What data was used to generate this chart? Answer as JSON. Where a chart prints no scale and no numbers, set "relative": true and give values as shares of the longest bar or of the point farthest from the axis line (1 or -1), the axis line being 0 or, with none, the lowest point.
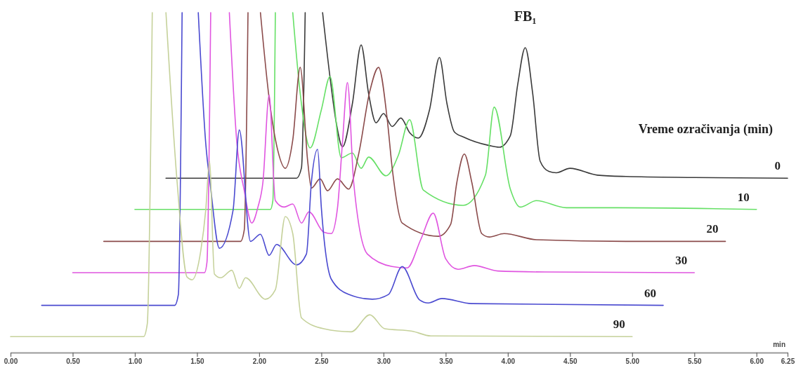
{
  "chart_data": {
    "type": "line",
    "relative": true,
    "xlabel": "min",
    "legend_title": "Vreme ozračivanja (min)",
    "xlim": [
      0,
      6.25
    ],
    "xticks": [
      {
        "value": 0,
        "label": "0.00"
      },
      {
        "value": 0.5,
        "label": "0.50"
      },
      {
        "value": 1,
        "label": "1.00"
      },
      {
        "value": 1.5,
        "label": "1.50"
      },
      {
        "value": 2,
        "label": "2.00"
      },
      {
        "value": 2.5,
        "label": "2.50"
      },
      {
        "value": 3,
        "label": "3.00"
      },
      {
        "value": 3.5,
        "label": "3.50"
      },
      {
        "value": 4,
        "label": "4.00"
      },
      {
        "value": 4.5,
        "label": "4.50"
      },
      {
        "value": 5,
        "label": "5.00"
      },
      {
        "value": 5.5,
        "label": "5.50"
      },
      {
        "value": 6,
        "label": "6.00"
      },
      {
        "value": 6.25,
        "label": "6.25"
      }
    ],
    "annotations": [
      {
        "text": "FB₁",
        "x": 4.14,
        "y": 0.897
      }
    ],
    "series": [
      {
        "name": "0",
        "color": "#3a3a3a",
        "x": [
          1.25,
          2.3,
          2.34,
          2.37,
          2.44,
          2.51,
          2.57,
          2.62,
          2.67,
          2.75,
          2.82,
          2.88,
          2.94,
          3.0,
          3.07,
          3.14,
          3.21,
          3.28,
          3.37,
          3.45,
          3.51,
          3.57,
          3.65,
          3.85,
          3.93,
          4.02,
          4.08,
          4.14,
          4.2,
          4.26,
          4.33,
          4.39,
          4.5,
          4.72,
          4.95,
          5.5,
          6.25
        ],
        "values": [
          0.513,
          0.513,
          0.543,
          1,
          null,
          1,
          0.809,
          0.676,
          0.605,
          0.733,
          0.905,
          0.762,
          0.676,
          0.703,
          0.665,
          0.69,
          0.647,
          0.631,
          0.714,
          0.868,
          0.733,
          0.649,
          0.633,
          0.609,
          0.604,
          0.638,
          0.79,
          0.897,
          0.762,
          0.563,
          0.533,
          0.529,
          0.542,
          0.522,
          0.518,
          0.515,
          0.513
        ]
      },
      {
        "name": "10",
        "color": "#66e066",
        "x": [
          1.0,
          2.09,
          2.11,
          2.13,
          2.2,
          2.27,
          2.33,
          2.41,
          2.5,
          2.57,
          2.66,
          2.75,
          2.82,
          2.88,
          3.02,
          3.12,
          3.21,
          3.32,
          3.64,
          3.82,
          3.89,
          4.02,
          4.1,
          4.23,
          4.47,
          4.88,
          6.0
        ],
        "values": [
          0.421,
          0.421,
          0.447,
          1,
          null,
          1,
          0.762,
          0.602,
          0.714,
          0.812,
          0.573,
          0.587,
          0.542,
          0.575,
          0.52,
          0.581,
          0.685,
          0.478,
          0.433,
          0.522,
          0.722,
          0.481,
          0.428,
          0.447,
          0.426,
          0.426,
          0.421
        ]
      },
      {
        "name": "20",
        "color": "#8b4b4b",
        "x": [
          0.75,
          1.85,
          1.88,
          1.91,
          1.96,
          2.01,
          2.08,
          2.15,
          2.21,
          2.27,
          2.33,
          2.39,
          2.42,
          2.49,
          2.55,
          2.63,
          2.72,
          2.8,
          2.89,
          2.96,
          3.03,
          3.07,
          3.15,
          3.44,
          3.54,
          3.59,
          3.65,
          3.71,
          3.79,
          3.85,
          3.97,
          4.23,
          4.95,
          5.75
        ],
        "values": [
          0.327,
          0.327,
          0.361,
          1,
          null,
          1,
          0.748,
          0.594,
          0.542,
          0.625,
          0.839,
          0.563,
          0.484,
          0.511,
          0.476,
          0.511,
          0.481,
          0.584,
          0.769,
          0.839,
          0.686,
          0.542,
          0.381,
          0.342,
          0.377,
          0.501,
          0.584,
          0.501,
          0.35,
          0.34,
          0.35,
          0.332,
          0.327,
          0.327
        ]
      },
      {
        "name": "30",
        "color": "#e055e0",
        "x": [
          0.5,
          1.56,
          1.58,
          1.61,
          1.68,
          1.76,
          1.82,
          1.88,
          1.94,
          1.99,
          2.03,
          2.08,
          2.13,
          2.2,
          2.27,
          2.34,
          2.4,
          2.52,
          2.58,
          2.63,
          2.67,
          2.71,
          2.76,
          2.87,
          3.07,
          3.19,
          3.3,
          3.4,
          3.5,
          3.6,
          3.73,
          3.92,
          4.3,
          5.5
        ],
        "values": [
          0.235,
          0.235,
          0.266,
          1,
          null,
          1,
          0.619,
          0.476,
          0.381,
          0.428,
          0.501,
          0.757,
          0.447,
          0.428,
          0.437,
          0.381,
          0.414,
          0.354,
          0.35,
          0.426,
          0.619,
          0.794,
          0.501,
          0.29,
          0.253,
          0.249,
          0.333,
          0.41,
          0.276,
          0.245,
          0.256,
          0.24,
          0.237,
          0.235
        ]
      },
      {
        "name": "60",
        "color": "#4a4ad0",
        "x": [
          0.25,
          1.32,
          1.35,
          1.38,
          1.45,
          1.51,
          1.57,
          1.61,
          1.68,
          1.79,
          1.84,
          1.93,
          2.01,
          2.08,
          2.14,
          2.3,
          2.38,
          2.42,
          2.47,
          2.5,
          2.58,
          2.72,
          2.91,
          3.04,
          3.15,
          3.29,
          3.36,
          3.47,
          3.71,
          5.25
        ],
        "values": [
          0.139,
          0.139,
          0.171,
          1,
          null,
          1,
          0.616,
          0.483,
          0.307,
          0.419,
          0.655,
          0.327,
          0.348,
          0.286,
          0.318,
          0.258,
          0.29,
          0.501,
          0.598,
          0.426,
          0.216,
          0.171,
          0.157,
          0.171,
          0.253,
          0.155,
          0.146,
          0.159,
          0.144,
          0.139
        ]
      },
      {
        "name": "90",
        "color": "#c5d19a",
        "x": [
          0,
          1.07,
          1.1,
          1.14,
          1.2,
          1.25,
          1.34,
          1.42,
          1.46,
          1.53,
          1.57,
          1.6,
          1.64,
          1.69,
          1.78,
          1.84,
          1.89,
          2.05,
          2.13,
          2.21,
          2.27,
          2.34,
          2.52,
          2.74,
          2.89,
          3.01,
          3.23,
          3.38,
          5.0
        ],
        "values": [
          0.047,
          0.047,
          0.085,
          1,
          null,
          1,
          0.501,
          0.222,
          0.214,
          0.299,
          0.419,
          0.563,
          0.231,
          0.22,
          0.242,
          0.189,
          0.22,
          0.157,
          0.185,
          0.4,
          0.35,
          0.102,
          0.07,
          0.061,
          0.111,
          0.07,
          0.063,
          0.049,
          0.047
        ]
      }
    ]
  }
}
